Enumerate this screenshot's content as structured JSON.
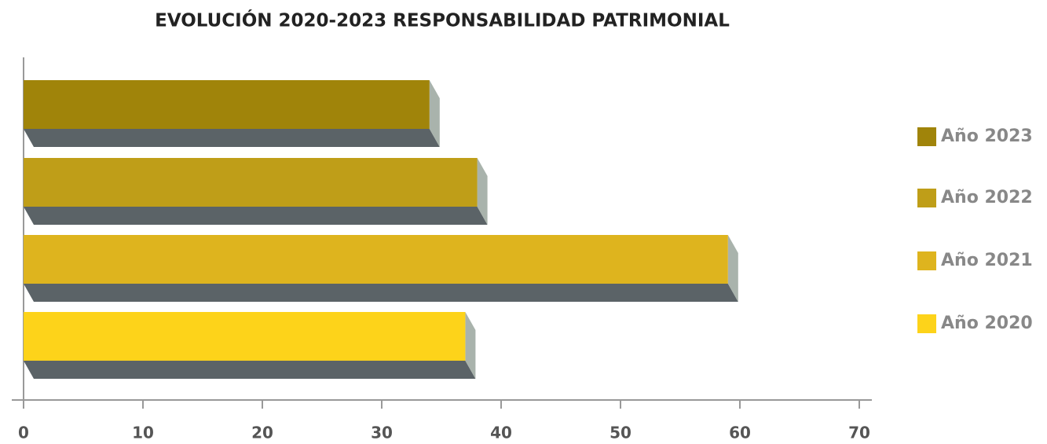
{
  "chart_data": {
    "type": "bar",
    "orientation": "horizontal",
    "title": "EVOLUCIÓN 2020-2023 RESPONSABILIDAD PATRIMONIAL",
    "categories": [
      null
    ],
    "series": [
      {
        "name": "Año 2023",
        "color": "#a0840a",
        "values": [
          34
        ]
      },
      {
        "name": "Año 2022",
        "color": "#bf9e18",
        "values": [
          38
        ]
      },
      {
        "name": "Año 2021",
        "color": "#deb41e",
        "values": [
          59
        ]
      },
      {
        "name": "Año 2020",
        "color": "#fdd31a",
        "values": [
          37
        ]
      }
    ],
    "xlim": [
      0,
      70
    ],
    "xticks": [
      0,
      10,
      20,
      30,
      40,
      50,
      60,
      70
    ],
    "grid": false,
    "legend": "right"
  }
}
